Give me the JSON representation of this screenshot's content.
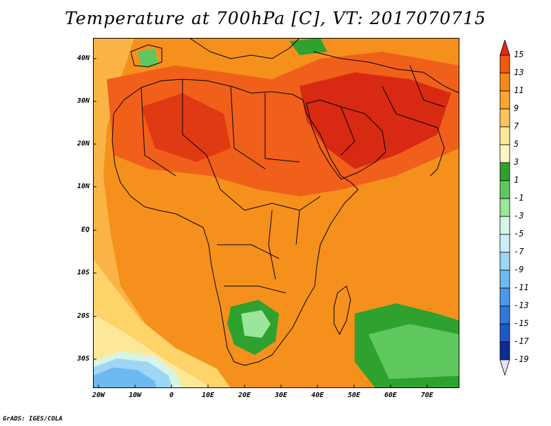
{
  "title": "Temperature at 700hPa [C], VT: 2017070715",
  "credit": "GrADS: IGES/COLA",
  "lat_labels": [
    "40N",
    "30N",
    "20N",
    "10N",
    "EQ",
    "10S",
    "20S",
    "30S"
  ],
  "lon_labels": [
    "20W",
    "10W",
    "0",
    "10E",
    "20E",
    "30E",
    "40E",
    "50E",
    "60E",
    "70E"
  ],
  "colorbar": {
    "labels": [
      "15",
      "13",
      "11",
      "9",
      "7",
      "5",
      "3",
      "1",
      "-1",
      "-3",
      "-5",
      "-7",
      "-9",
      "-11",
      "-13",
      "-15",
      "-17",
      "-19"
    ],
    "colors": [
      "#e02a10",
      "#f05a10",
      "#f58a18",
      "#f8a830",
      "#fbc55a",
      "#fde89a",
      "#fdf8c0",
      "#2ea12e",
      "#5ec85e",
      "#9be69b",
      "#d6f5e6",
      "#cdeffa",
      "#9fd6f6",
      "#6ebaf0",
      "#4b9ae6",
      "#2f7ad8",
      "#1f58c4",
      "#0d2f90",
      "#051a6a"
    ]
  }
}
